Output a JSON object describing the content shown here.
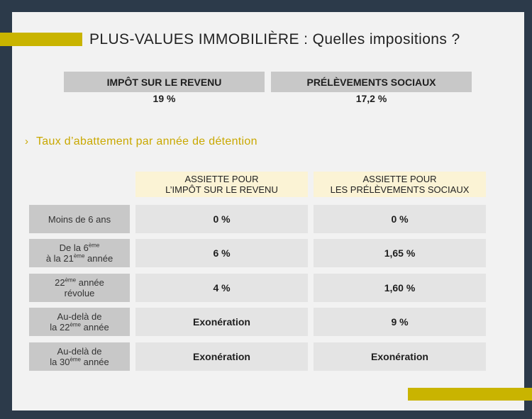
{
  "title": "PLUS-VALUES IMMOBILIÈRE : Quelles impositions ?",
  "taxes": [
    {
      "label": "IMPÔT SUR LE REVENU",
      "value": "19 %"
    },
    {
      "label": "PRÉLÈVEMENTS SOCIAUX",
      "value": "17,2 %"
    }
  ],
  "section_title": "Taux d’abattement par année de détention",
  "section_chevron": "›",
  "columns": [
    {
      "line1": "ASSIETTE POUR",
      "line2": "L’IMPÔT SUR LE REVENU"
    },
    {
      "line1": "ASSIETTE POUR",
      "line2": "LES PRÉLÈVEMENTS SOCIAUX"
    }
  ],
  "rows": [
    {
      "l1": "Moins de 6 ans",
      "l1sup": "",
      "l1b": "",
      "l2": "",
      "l2sup": "",
      "l2b": "",
      "ir": "0 %",
      "ps": "0 %"
    },
    {
      "l1": "De la 6",
      "l1sup": "ème",
      "l1b": "",
      "l2": "à la 21",
      "l2sup": "ème",
      "l2b": " année",
      "ir": "6 %",
      "ps": "1,65 %"
    },
    {
      "l1": "22",
      "l1sup": "ème",
      "l1b": " année",
      "l2": "révolue",
      "l2sup": "",
      "l2b": "",
      "ir": "4 %",
      "ps": "1,60 %"
    },
    {
      "l1": "Au-delà de",
      "l1sup": "",
      "l1b": "",
      "l2": "la 22",
      "l2sup": "ème",
      "l2b": " année",
      "ir": "Exonération",
      "ps": "9 %"
    },
    {
      "l1": "Au-delà de",
      "l1sup": "",
      "l1b": "",
      "l2": "la 30",
      "l2sup": "ème",
      "l2b": " année",
      "ir": "Exonération",
      "ps": "Exonération"
    }
  ],
  "colors": {
    "accent": "#c9b400",
    "header_gray": "#c8c8c8",
    "cell_gray": "#e4e4e4",
    "column_head": "#fbf3d5"
  }
}
